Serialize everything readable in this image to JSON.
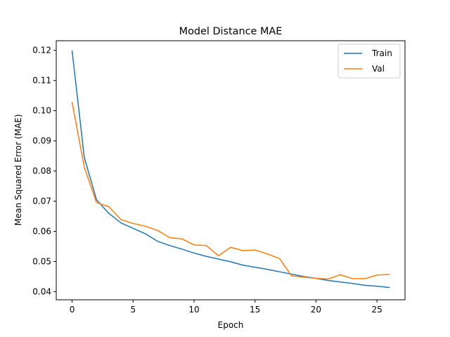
{
  "chart_data": {
    "type": "line",
    "title": "Model Distance MAE",
    "xlabel": "Epoch",
    "ylabel": "Mean Squared Error (MAE)",
    "xlim": [
      -1.3,
      27.3
    ],
    "ylim": [
      0.0373,
      0.1232
    ],
    "x_ticks": [
      0,
      5,
      10,
      15,
      20,
      25
    ],
    "y_ticks": [
      0.04,
      0.05,
      0.06,
      0.07,
      0.08,
      0.09,
      0.1,
      0.11,
      0.12
    ],
    "x_tick_labels": [
      "0",
      "5",
      "10",
      "15",
      "20",
      "25"
    ],
    "y_tick_labels": [
      "0.04",
      "0.05",
      "0.06",
      "0.07",
      "0.08",
      "0.09",
      "0.10",
      "0.11",
      "0.12"
    ],
    "grid": false,
    "legend_position": "top-right",
    "x": [
      0,
      1,
      2,
      3,
      4,
      5,
      6,
      7,
      8,
      9,
      10,
      11,
      12,
      13,
      14,
      15,
      16,
      17,
      18,
      19,
      20,
      21,
      22,
      23,
      24,
      25,
      26
    ],
    "series": [
      {
        "name": "Train",
        "color": "#1f77b4",
        "values": [
          0.1198,
          0.0845,
          0.0705,
          0.066,
          0.0628,
          0.061,
          0.0592,
          0.0567,
          0.0553,
          0.0541,
          0.0528,
          0.0517,
          0.0508,
          0.0499,
          0.0488,
          0.0481,
          0.0474,
          0.0466,
          0.0458,
          0.045,
          0.0444,
          0.0437,
          0.0432,
          0.0427,
          0.0421,
          0.0418,
          0.0414
        ]
      },
      {
        "name": "Val",
        "color": "#ff7f0e",
        "values": [
          0.1027,
          0.0812,
          0.0695,
          0.0682,
          0.0639,
          0.0626,
          0.0617,
          0.0603,
          0.0579,
          0.0575,
          0.0555,
          0.0553,
          0.0519,
          0.0547,
          0.0536,
          0.0538,
          0.0525,
          0.051,
          0.0452,
          0.0448,
          0.0444,
          0.0442,
          0.0456,
          0.0443,
          0.0443,
          0.0455,
          0.0457
        ]
      }
    ]
  }
}
